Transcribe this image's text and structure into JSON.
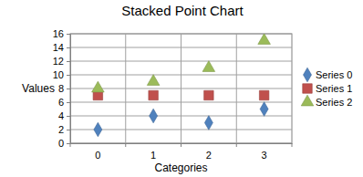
{
  "chart_data": {
    "type": "scatter",
    "title": "Stacked Point Chart",
    "x_label": "Categories",
    "y_label": "Values",
    "categories": [
      "0",
      "1",
      "2",
      "3"
    ],
    "series": [
      {
        "name": "Series 0",
        "color": "#4f81bd",
        "marker": "diamond",
        "values": [
          2,
          4,
          3,
          5
        ]
      },
      {
        "name": "Series 1",
        "color": "#c0504d",
        "marker": "square",
        "values": [
          7,
          7,
          7,
          7
        ]
      },
      {
        "name": "Series 2",
        "color": "#9bbb59",
        "marker": "triangle",
        "values": [
          8,
          9,
          11,
          15
        ]
      }
    ],
    "ylim": [
      0,
      16
    ],
    "yticks": [
      0,
      2,
      4,
      6,
      8,
      10,
      12,
      14,
      16
    ],
    "grid": true,
    "legend": "right"
  }
}
